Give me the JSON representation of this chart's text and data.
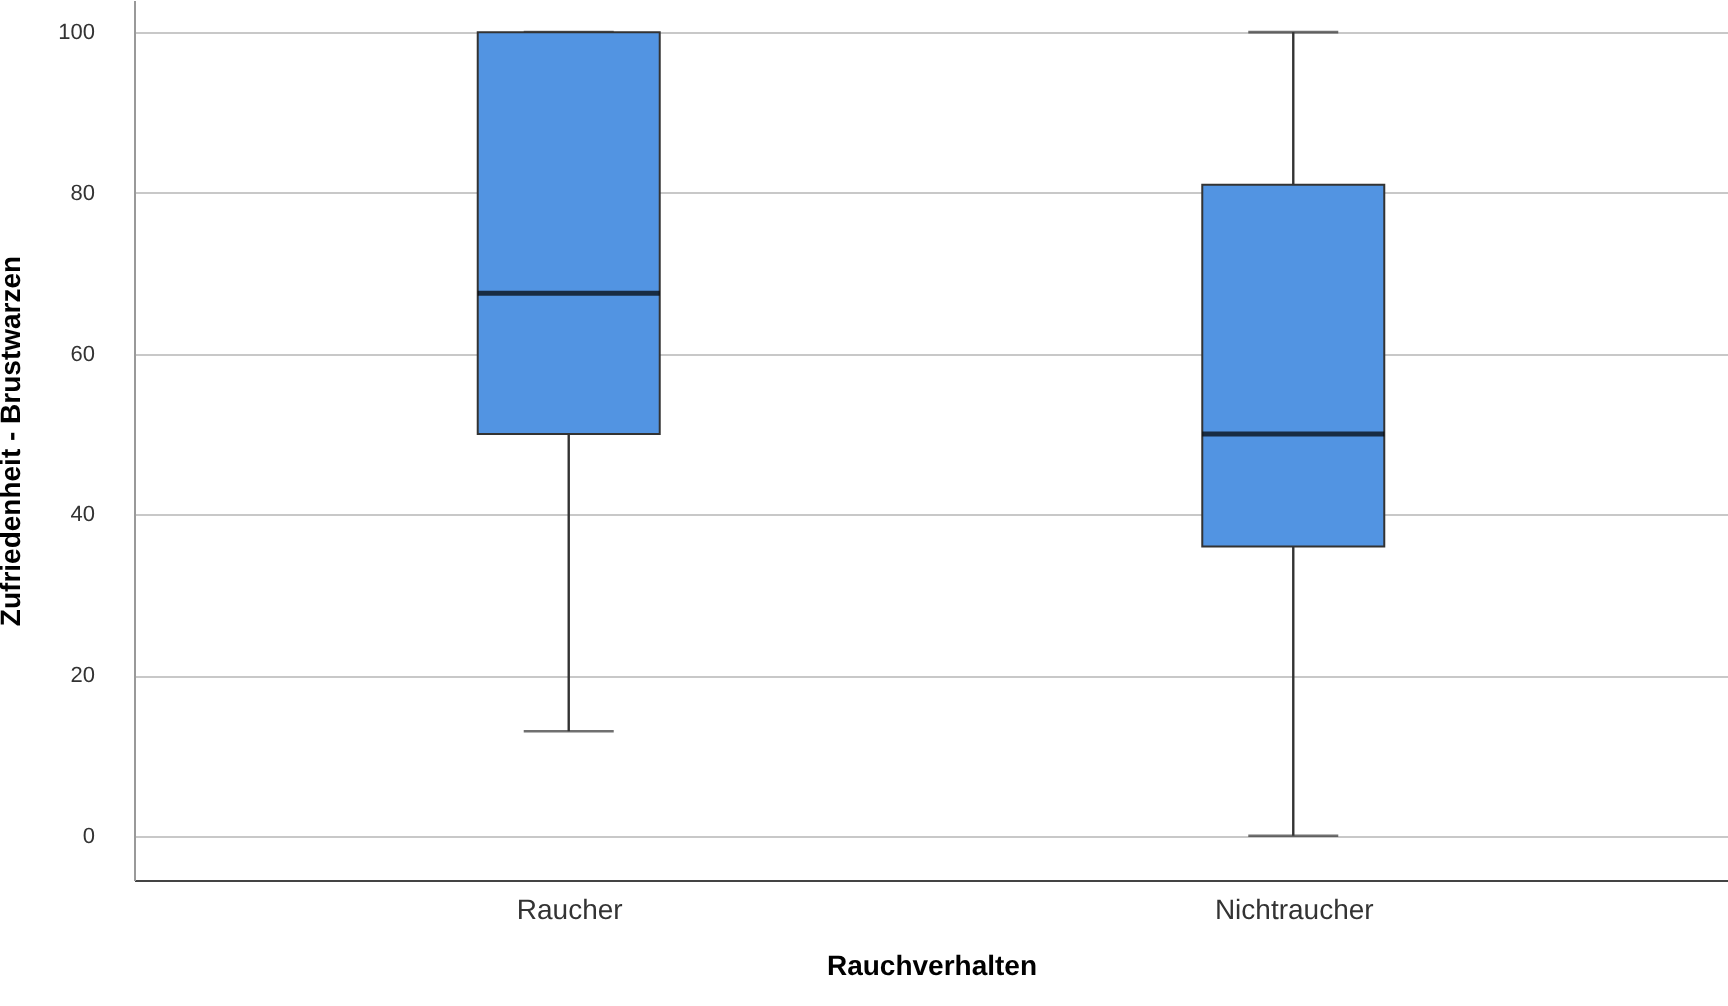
{
  "chart_data": {
    "type": "box",
    "xlabel": "Rauchverhalten",
    "ylabel": "Zufriedenheit - Brustwarzen",
    "categories": [
      "Raucher",
      "Nichtraucher"
    ],
    "series": [
      {
        "color": "#5294e2",
        "boxes": [
          {
            "low": 13,
            "q1": 50,
            "median": 67.5,
            "q3": 100,
            "high": 100
          },
          {
            "low": 0,
            "q1": 36,
            "median": 50,
            "q3": 81,
            "high": 100
          }
        ]
      }
    ],
    "ylim": [
      -5.5,
      104
    ],
    "yticks": [
      0,
      20,
      40,
      60,
      80,
      100
    ],
    "grid": "y"
  }
}
